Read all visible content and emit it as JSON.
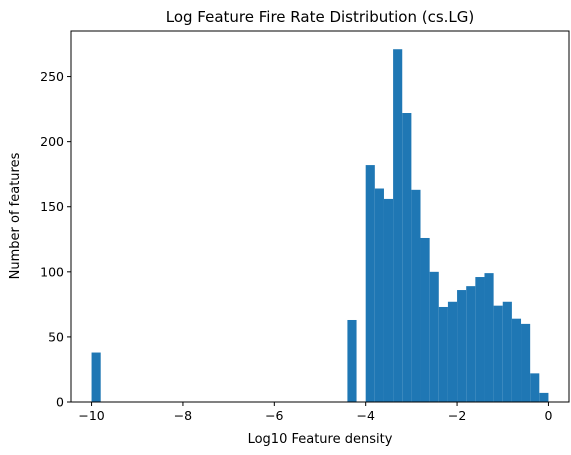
{
  "chart_data": {
    "type": "bar",
    "title": "Log Feature Fire Rate Distribution (cs.LG)",
    "xlabel": "Log10 Feature density",
    "ylabel": "Number of features",
    "xlim": [
      -10.45,
      0.45
    ],
    "ylim": [
      0,
      285
    ],
    "xticks": [
      -10,
      -8,
      -6,
      -4,
      -2,
      0
    ],
    "yticks": [
      0,
      50,
      100,
      150,
      200,
      250
    ],
    "bar_color": "#1f77b4",
    "bin_width": 0.2,
    "bins": [
      {
        "x0": -10.0,
        "x1": -9.8,
        "value": 38
      },
      {
        "x0": -4.4,
        "x1": -4.2,
        "value": 63
      },
      {
        "x0": -4.0,
        "x1": -3.8,
        "value": 182
      },
      {
        "x0": -3.8,
        "x1": -3.6,
        "value": 164
      },
      {
        "x0": -3.6,
        "x1": -3.4,
        "value": 156
      },
      {
        "x0": -3.4,
        "x1": -3.2,
        "value": 271
      },
      {
        "x0": -3.2,
        "x1": -3.0,
        "value": 222
      },
      {
        "x0": -3.0,
        "x1": -2.8,
        "value": 163
      },
      {
        "x0": -2.8,
        "x1": -2.6,
        "value": 126
      },
      {
        "x0": -2.6,
        "x1": -2.4,
        "value": 100
      },
      {
        "x0": -2.4,
        "x1": -2.2,
        "value": 73
      },
      {
        "x0": -2.2,
        "x1": -2.0,
        "value": 77
      },
      {
        "x0": -2.0,
        "x1": -1.8,
        "value": 86
      },
      {
        "x0": -1.8,
        "x1": -1.6,
        "value": 89
      },
      {
        "x0": -1.6,
        "x1": -1.4,
        "value": 96
      },
      {
        "x0": -1.4,
        "x1": -1.2,
        "value": 99
      },
      {
        "x0": -1.2,
        "x1": -1.0,
        "value": 74
      },
      {
        "x0": -1.0,
        "x1": -0.8,
        "value": 77
      },
      {
        "x0": -0.8,
        "x1": -0.6,
        "value": 64
      },
      {
        "x0": -0.6,
        "x1": -0.4,
        "value": 60
      },
      {
        "x0": -0.4,
        "x1": -0.2,
        "value": 22
      },
      {
        "x0": -0.2,
        "x1": 0.0,
        "value": 7
      }
    ]
  }
}
